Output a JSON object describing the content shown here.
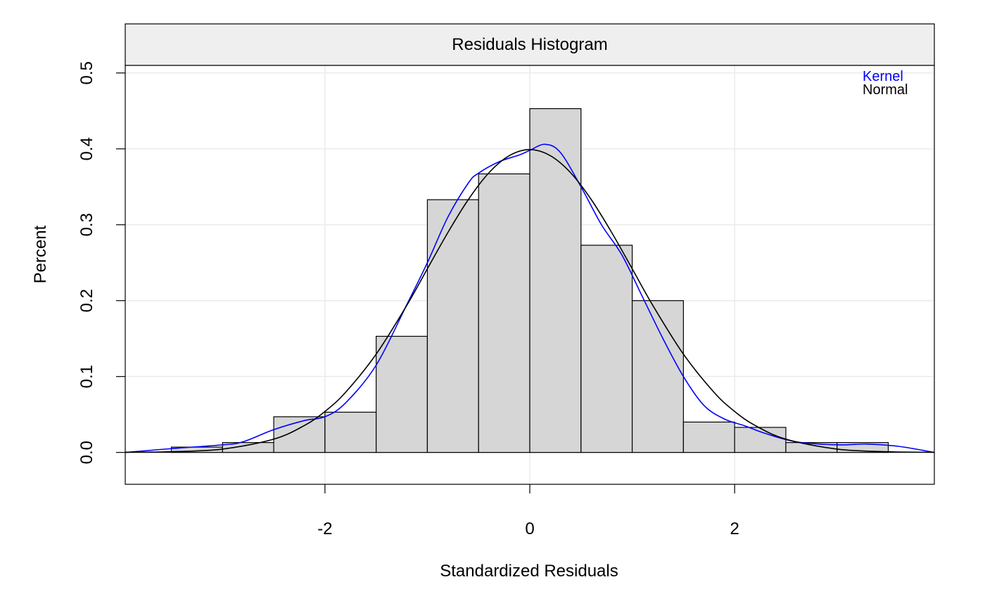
{
  "chart_data": {
    "type": "bar",
    "title": "Residuals Histogram",
    "xlabel": "Standardized Residuals",
    "ylabel": "Percent",
    "xlim": [
      -3.95,
      3.95
    ],
    "ylim": [
      -0.042,
      0.51
    ],
    "x_ticks": [
      -2,
      0,
      2
    ],
    "x_tick_labels": [
      "-2",
      "0",
      "2"
    ],
    "y_ticks": [
      0.0,
      0.1,
      0.2,
      0.3,
      0.4,
      0.5
    ],
    "y_tick_labels": [
      "0.0",
      "0.1",
      "0.2",
      "0.3",
      "0.4",
      "0.5"
    ],
    "grid": true,
    "legend_position": "top-right",
    "bins": [
      {
        "x0": -3.5,
        "x1": -3.0,
        "value": 0.007
      },
      {
        "x0": -3.0,
        "x1": -2.5,
        "value": 0.013
      },
      {
        "x0": -2.5,
        "x1": -2.0,
        "value": 0.047
      },
      {
        "x0": -2.0,
        "x1": -1.5,
        "value": 0.053
      },
      {
        "x0": -1.5,
        "x1": -1.0,
        "value": 0.153
      },
      {
        "x0": -1.0,
        "x1": -0.5,
        "value": 0.333
      },
      {
        "x0": -0.5,
        "x1": 0.0,
        "value": 0.367
      },
      {
        "x0": 0.0,
        "x1": 0.5,
        "value": 0.453
      },
      {
        "x0": 0.5,
        "x1": 1.0,
        "value": 0.273
      },
      {
        "x0": 1.0,
        "x1": 1.5,
        "value": 0.2
      },
      {
        "x0": 1.5,
        "x1": 2.0,
        "value": 0.04
      },
      {
        "x0": 2.0,
        "x1": 2.5,
        "value": 0.033
      },
      {
        "x0": 2.5,
        "x1": 3.0,
        "value": 0.013
      },
      {
        "x0": 3.0,
        "x1": 3.5,
        "value": 0.013
      }
    ],
    "series": [
      {
        "name": "Kernel",
        "color": "#0000ff",
        "x": [
          -3.95,
          -3.5,
          -3.0,
          -2.8,
          -2.5,
          -2.2,
          -2.0,
          -1.8,
          -1.5,
          -1.2,
          -1.0,
          -0.8,
          -0.6,
          -0.5,
          -0.3,
          -0.1,
          0.0,
          0.15,
          0.3,
          0.5,
          0.7,
          0.9,
          1.1,
          1.3,
          1.5,
          1.7,
          1.9,
          2.1,
          2.3,
          2.6,
          3.0,
          3.3,
          3.6,
          3.95
        ],
        "y": [
          0.0,
          0.005,
          0.01,
          0.014,
          0.03,
          0.042,
          0.047,
          0.065,
          0.115,
          0.195,
          0.25,
          0.31,
          0.355,
          0.368,
          0.383,
          0.392,
          0.398,
          0.406,
          0.395,
          0.35,
          0.3,
          0.26,
          0.205,
          0.15,
          0.1,
          0.062,
          0.044,
          0.035,
          0.025,
          0.014,
          0.01,
          0.011,
          0.008,
          0.0
        ]
      },
      {
        "name": "Normal",
        "color": "#000000",
        "x": [
          -3.95,
          -3.5,
          -3.0,
          -2.5,
          -2.2,
          -2.0,
          -1.8,
          -1.5,
          -1.2,
          -1.0,
          -0.8,
          -0.6,
          -0.4,
          -0.2,
          0.0,
          0.2,
          0.4,
          0.6,
          0.8,
          1.0,
          1.2,
          1.5,
          1.8,
          2.0,
          2.2,
          2.5,
          3.0,
          3.5,
          3.95
        ],
        "y": [
          0.0002,
          0.0009,
          0.0044,
          0.0175,
          0.0355,
          0.054,
          0.079,
          0.1295,
          0.194,
          0.242,
          0.2897,
          0.3332,
          0.3683,
          0.391,
          0.399,
          0.391,
          0.3683,
          0.3332,
          0.2897,
          0.242,
          0.194,
          0.1295,
          0.079,
          0.054,
          0.0355,
          0.0175,
          0.0044,
          0.0009,
          0.0002
        ]
      }
    ]
  }
}
